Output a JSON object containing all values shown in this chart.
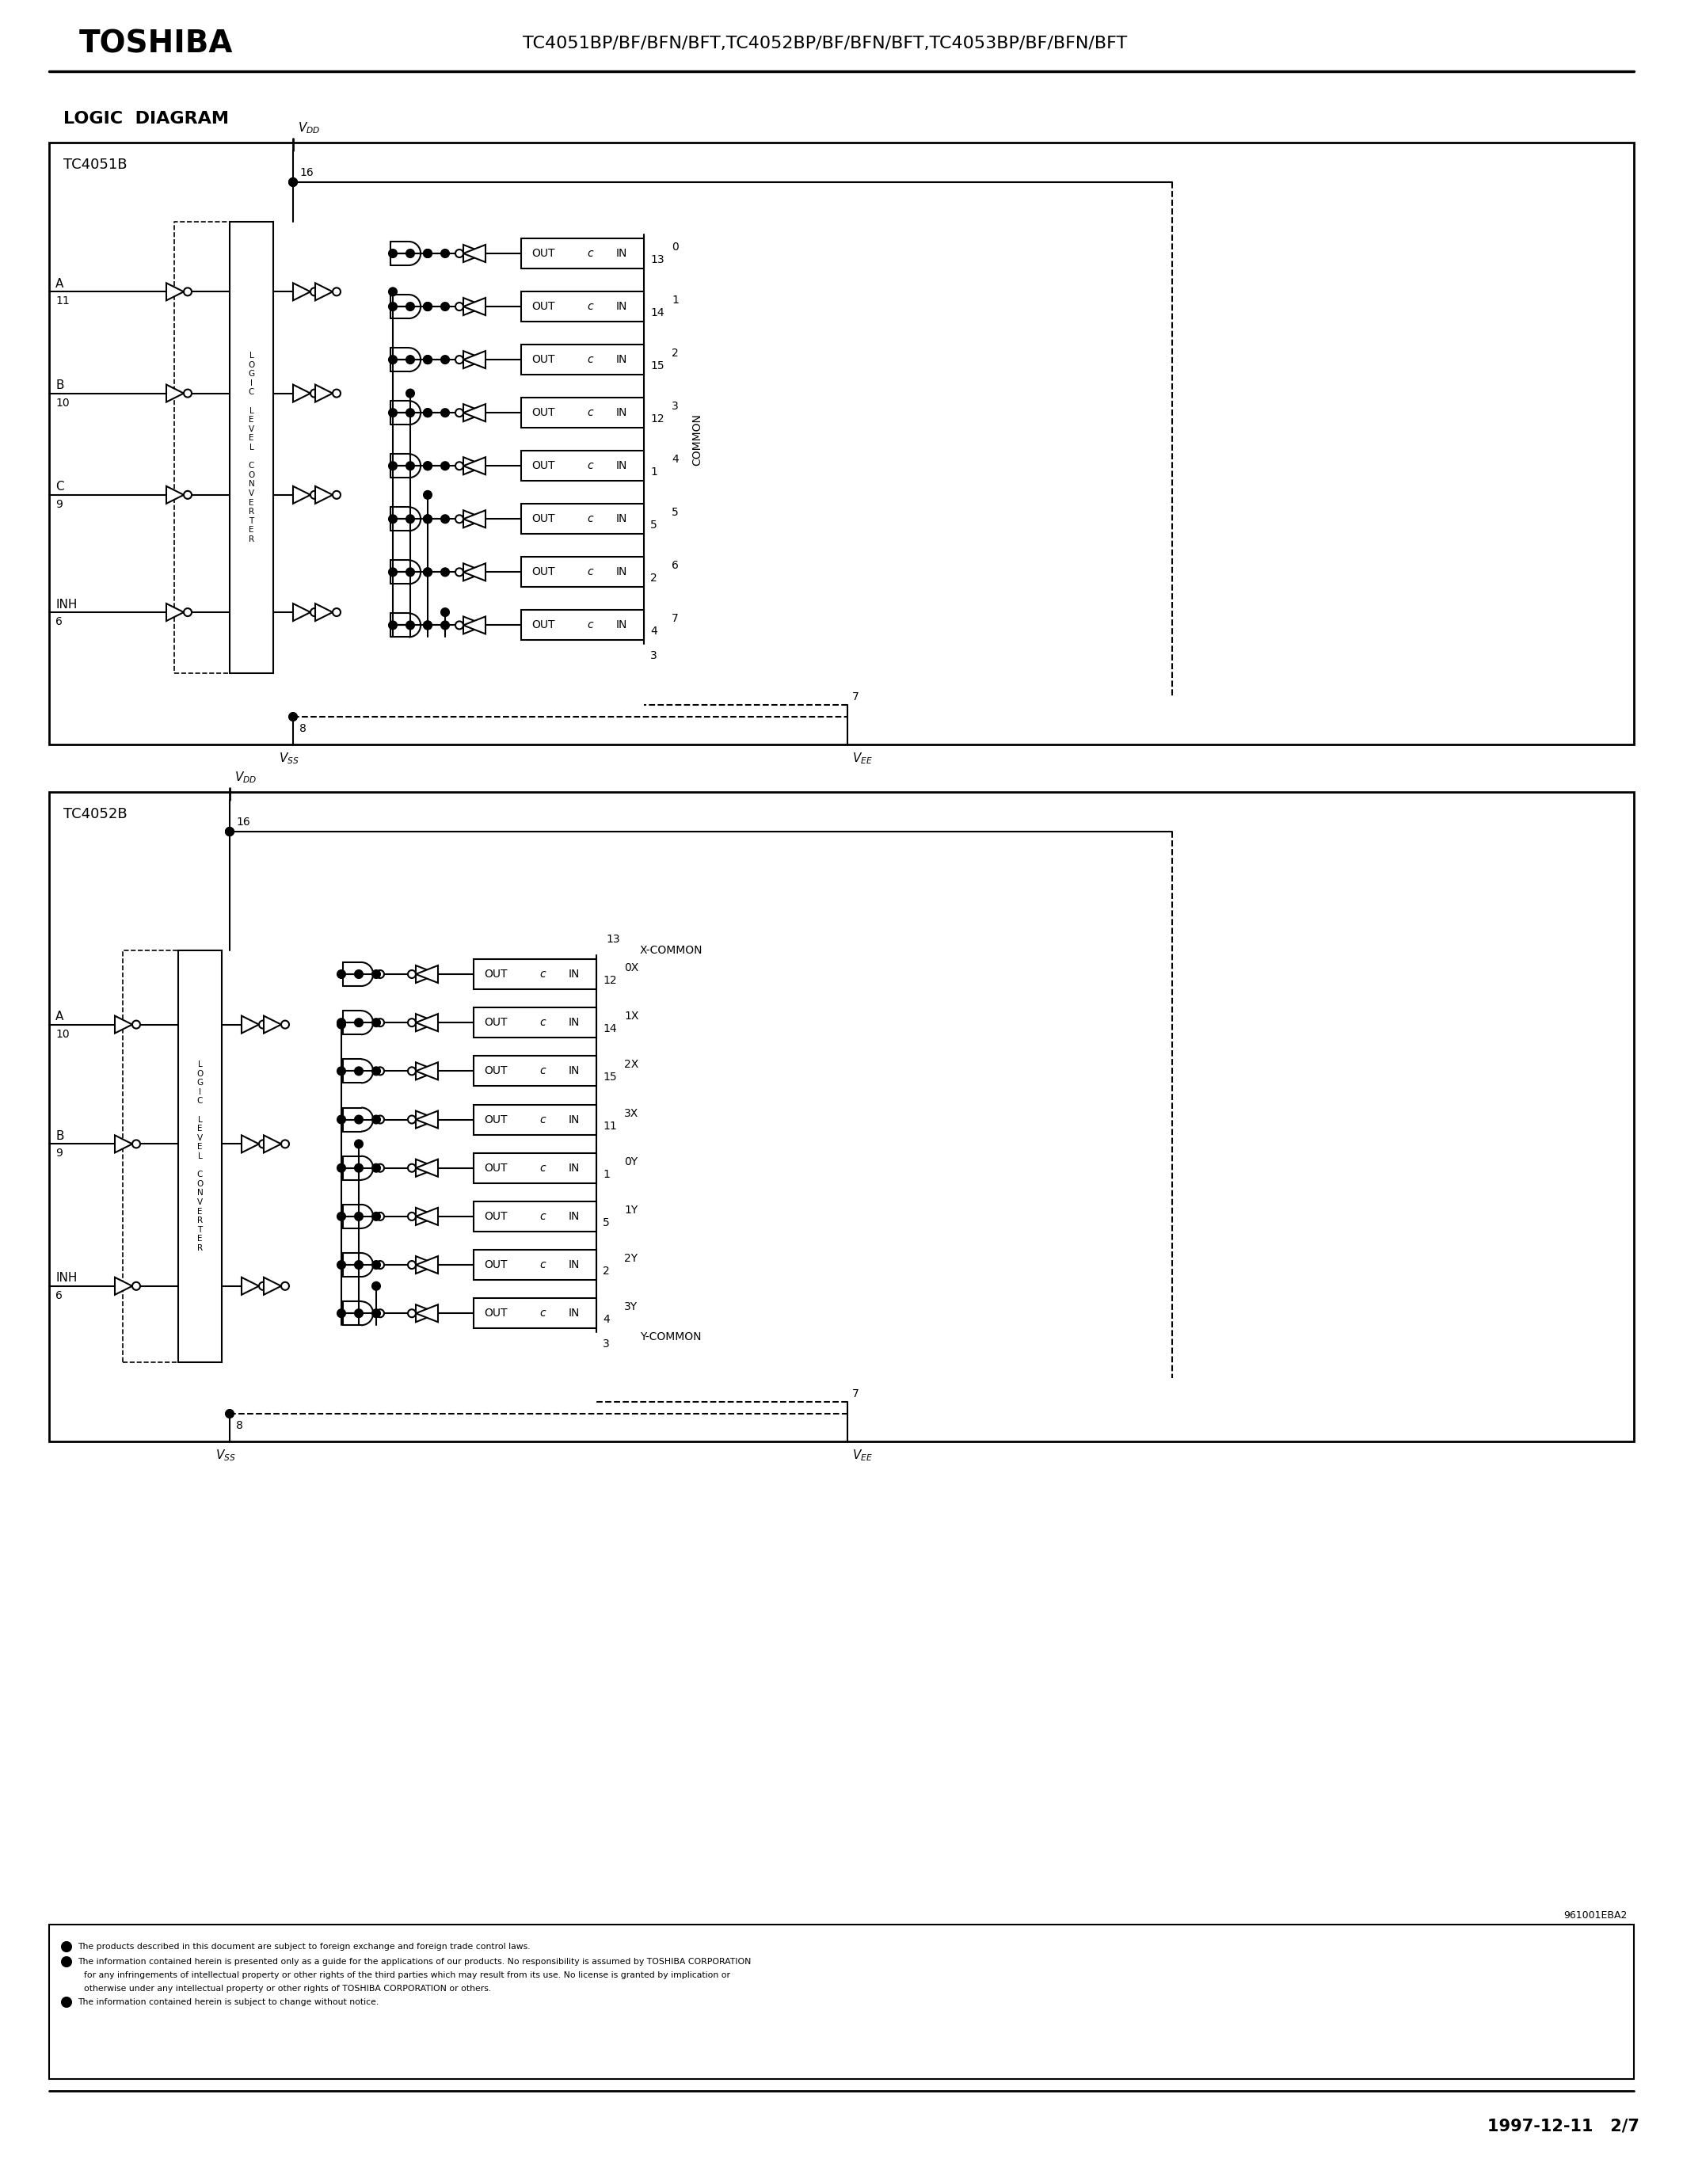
{
  "page_width": 21.25,
  "page_height": 27.5,
  "bg_color": "#ffffff",
  "title_toshiba": "TOSHIBA",
  "title_parts": "TC4051BP/BF/BFN/BFT,TC4052BP/BF/BFN/BFT,TC4053BP/BF/BFN/BFT",
  "section_title": "LOGIC  DIAGRAM",
  "tc4051_label": "TC4051B",
  "tc4052_label": "TC4052B",
  "date_page": "1997-12-11   2/7",
  "footer_ref": "961001EBA2",
  "disclaimer_lines": [
    "The products described in this document are subject to foreign exchange and foreign trade control laws.",
    "The information contained herein is presented only as a guide for the applications of our products. No responsibility is assumed by TOSHIBA CORPORATION",
    "for any infringements of intellectual property or other rights of the third parties which may result from its use. No license is granted by implication or",
    "otherwise under any intellectual property or other rights of TOSHIBA CORPORATION or others.",
    "The information contained herein is subject to change without notice."
  ],
  "tc4051_out_labels": [
    [
      "0",
      "13"
    ],
    [
      "1",
      "14"
    ],
    [
      "2",
      "15"
    ],
    [
      "3",
      "12"
    ],
    [
      "4",
      "1"
    ],
    [
      "5",
      "5"
    ],
    [
      "6",
      "2"
    ],
    [
      "7",
      "4"
    ]
  ],
  "tc4052_out_labels": [
    [
      "0X",
      "12"
    ],
    [
      "1X",
      "14"
    ],
    [
      "2X",
      "15"
    ],
    [
      "3X",
      "11"
    ],
    [
      "0Y",
      "1"
    ],
    [
      "1Y",
      "5"
    ],
    [
      "2Y",
      "2"
    ],
    [
      "3Y",
      "4"
    ]
  ]
}
